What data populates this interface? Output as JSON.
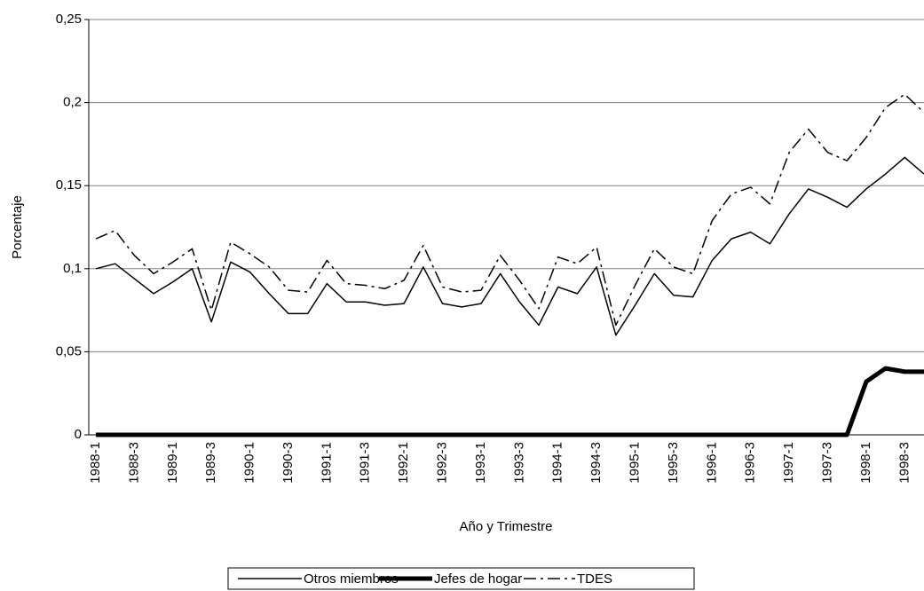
{
  "chart_data": {
    "type": "line",
    "x_label": "Año y Trimestre",
    "y_label": "Porcentaje",
    "categories": [
      "1988-1",
      null,
      "1988-3",
      null,
      "1989-1",
      null,
      "1989-3",
      null,
      "1990-1",
      null,
      "1990-3",
      null,
      "1991-1",
      null,
      "1991-3",
      null,
      "1992-1",
      null,
      "1992-3",
      null,
      "1993-1",
      null,
      "1993-3",
      null,
      "1994-1",
      null,
      "1994-3",
      null,
      "1995-1",
      null,
      "1995-3",
      null,
      "1996-1",
      null,
      "1996-3",
      null,
      "1997-1",
      null,
      "1997-3",
      null,
      "1998-1",
      null,
      "1998-3",
      null
    ],
    "series": [
      {
        "name": "Otros miembros",
        "color": "#000000",
        "line_width": 1.5,
        "dash": "solid",
        "values": [
          0.1,
          0.103,
          0.094,
          0.085,
          0.092,
          0.1,
          0.068,
          0.104,
          0.098,
          0.085,
          0.073,
          0.073,
          0.091,
          0.08,
          0.08,
          0.078,
          0.079,
          0.101,
          0.079,
          0.077,
          0.079,
          0.097,
          0.08,
          0.066,
          0.089,
          0.085,
          0.101,
          0.06,
          0.078,
          0.097,
          0.084,
          0.083,
          0.105,
          0.118,
          0.122,
          0.115,
          0.133,
          0.148,
          0.143,
          0.137,
          0.148,
          0.157,
          0.167,
          0.157
        ]
      },
      {
        "name": "Jefes de hogar",
        "color": "#000000",
        "line_width": 5,
        "dash": "solid",
        "values": [
          0,
          0,
          0,
          0,
          0,
          0,
          0,
          0,
          0,
          0,
          0,
          0,
          0,
          0,
          0,
          0,
          0,
          0,
          0,
          0,
          0,
          0,
          0,
          0,
          0,
          0,
          0,
          0,
          0,
          0,
          0,
          0,
          0,
          0,
          0,
          0,
          0,
          0,
          0,
          0,
          0.032,
          0.04,
          0.038,
          0.038
        ]
      },
      {
        "name": "TDES",
        "color": "#000000",
        "line_width": 1.5,
        "dash": "dashdot",
        "values": [
          0.118,
          0.123,
          0.108,
          0.097,
          0.104,
          0.112,
          0.075,
          0.116,
          0.109,
          0.101,
          0.087,
          0.086,
          0.105,
          0.091,
          0.09,
          0.088,
          0.093,
          0.114,
          0.089,
          0.086,
          0.087,
          0.108,
          0.093,
          0.076,
          0.107,
          0.103,
          0.113,
          0.066,
          0.09,
          0.112,
          0.101,
          0.097,
          0.129,
          0.145,
          0.149,
          0.139,
          0.17,
          0.184,
          0.17,
          0.165,
          0.179,
          0.197,
          0.205,
          0.194
        ]
      }
    ],
    "ylim": [
      0,
      0.25
    ],
    "yticks": [
      0,
      {
        "value": 0.05,
        "label": "0,05"
      },
      {
        "value": 0.1,
        "label": "0,1"
      },
      {
        "value": 0.15,
        "label": "0,15"
      },
      {
        "value": 0.2,
        "label": "0,2"
      },
      {
        "value": 0.25,
        "label": "0,25"
      }
    ],
    "grid": true,
    "legend": "bottom"
  }
}
